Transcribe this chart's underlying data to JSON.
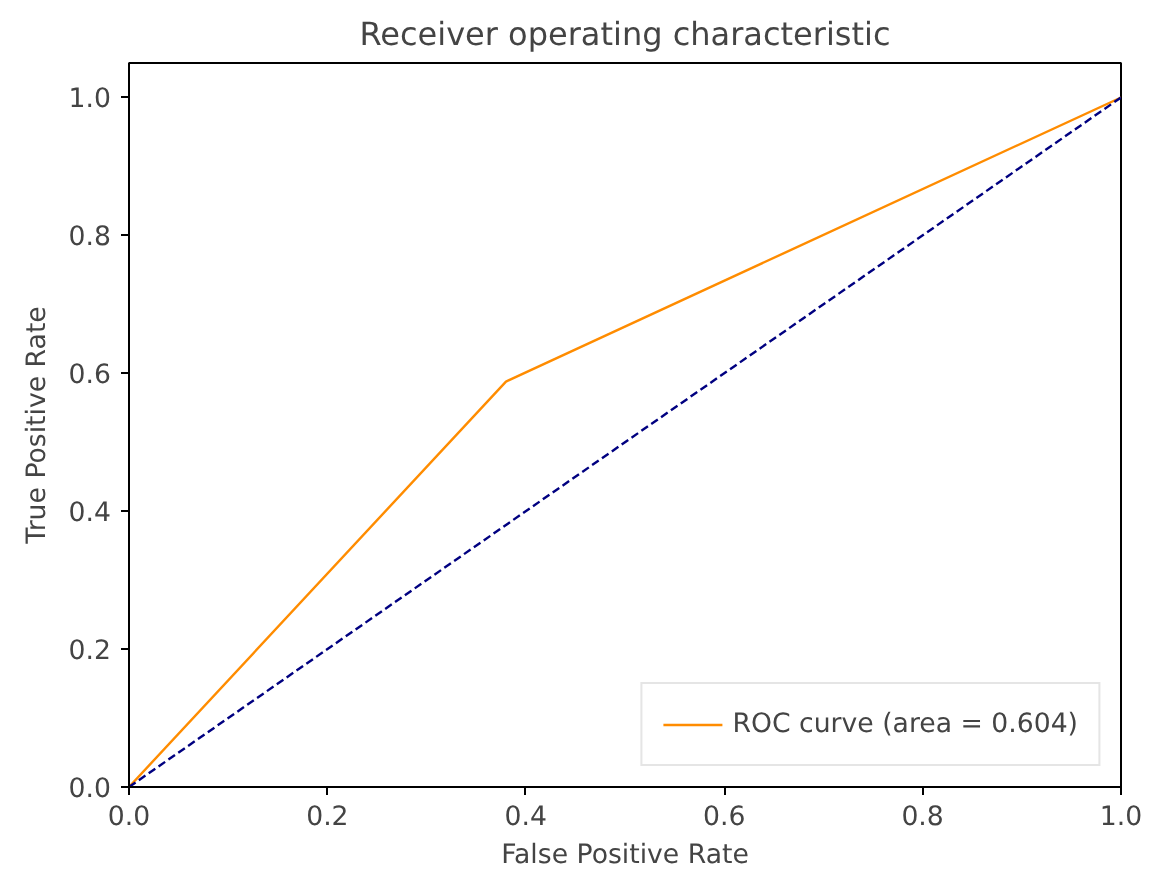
{
  "chart_data": {
    "type": "line",
    "title": "Receiver operating characteristic",
    "xlabel": "False Positive Rate",
    "ylabel": "True Positive Rate",
    "xlim": [
      0,
      1
    ],
    "ylim": [
      0,
      1.05
    ],
    "xticks": [
      {
        "value": 0,
        "label": "0.0"
      },
      0.2,
      0.4,
      0.6,
      0.8,
      {
        "value": 1,
        "label": "1.0"
      }
    ],
    "yticks": [
      {
        "value": 0,
        "label": "0.0"
      },
      0.2,
      0.4,
      0.6,
      0.8,
      {
        "value": 1,
        "label": "1.0"
      }
    ],
    "series": [
      {
        "name": "ROC curve (area = 0.604)",
        "color": "#ff8c00",
        "x": [
          0,
          0.38,
          1
        ],
        "values": [
          0,
          0.588,
          1
        ],
        "line_style": "solid"
      },
      {
        "color": "#000080",
        "x": [
          0,
          1
        ],
        "values": [
          0,
          1
        ],
        "line_style": "dashed"
      }
    ],
    "grid": false,
    "legend": "bottom right",
    "marker": "none"
  }
}
